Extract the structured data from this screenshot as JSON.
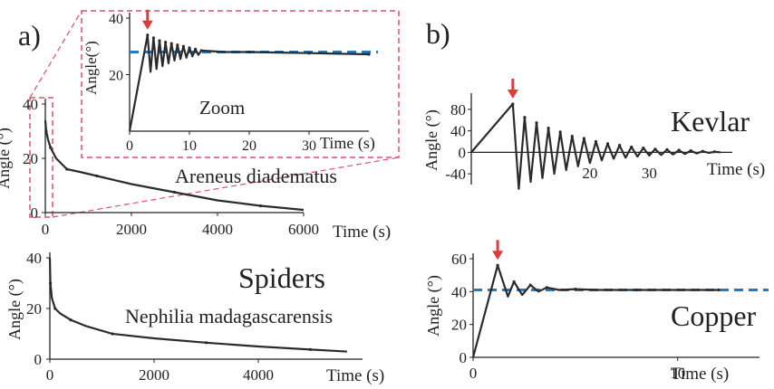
{
  "panel_labels": {
    "a": "a)",
    "b": "b)"
  },
  "colors": {
    "curve": "#2b2b2b",
    "arrow": "#e23a3a",
    "dashed": "#1f7ac8",
    "zoom_box": "#e0506a"
  },
  "chart_data": [
    {
      "id": "areneus",
      "type": "line",
      "annotation": "Areneus diadematus",
      "ylabel": "Angle (°)",
      "xlabel": "Time (s)",
      "xlim": [
        0,
        6000
      ],
      "ylim": [
        0,
        40
      ],
      "xticks": [
        0,
        2000,
        4000,
        6000
      ],
      "yticks": [
        0,
        20,
        40
      ],
      "series": [
        {
          "x": [
            0,
            20,
            60,
            120,
            250,
            500,
            800,
            1200,
            2000,
            3000,
            4000,
            5000,
            6000
          ],
          "y": [
            34,
            30,
            27,
            24,
            20,
            16,
            15,
            13.5,
            10.5,
            7.5,
            4.5,
            2.5,
            1
          ]
        }
      ]
    },
    {
      "id": "zoom",
      "type": "line",
      "annotation": "Zoom",
      "ylabel": "Angle(°)",
      "xlabel": "Time (s)",
      "xlim": [
        0,
        40
      ],
      "ylim": [
        0,
        40
      ],
      "xticks": [
        0,
        10,
        20,
        30
      ],
      "yticks": [
        20,
        40
      ],
      "reference_line": 28,
      "arrow_at_x": 3,
      "series": [
        {
          "x": [
            0,
            3,
            3.5,
            4,
            4.5,
            5,
            5.5,
            6,
            6.5,
            7,
            7.5,
            8,
            8.5,
            9,
            9.5,
            10,
            10.5,
            11,
            11.5,
            12,
            16,
            20,
            25,
            30,
            35,
            40
          ],
          "y": [
            0,
            34,
            21,
            33,
            22,
            32,
            23,
            31.5,
            24,
            31,
            25,
            30.5,
            25.5,
            30,
            26,
            29.5,
            26.5,
            29,
            27,
            28.5,
            28,
            28,
            27.8,
            27.6,
            27.4,
            27.2
          ]
        }
      ]
    },
    {
      "id": "nephilia",
      "type": "line",
      "annotation": "Nephilia madagascarensis",
      "title": "Spiders",
      "ylabel": "Angle (°)",
      "xlabel": "Time (s)",
      "xlim": [
        0,
        6000
      ],
      "ylim": [
        0,
        40
      ],
      "xticks": [
        0,
        2000,
        4000
      ],
      "yticks": [
        0,
        20,
        40
      ],
      "series": [
        {
          "x": [
            0,
            10,
            40,
            100,
            200,
            400,
            700,
            1200,
            2000,
            3000,
            4000,
            5000,
            5700
          ],
          "y": [
            40,
            30,
            24,
            20,
            18,
            15.5,
            13,
            10,
            8.2,
            6.5,
            5,
            3.8,
            3
          ]
        }
      ]
    },
    {
      "id": "kevlar",
      "type": "line",
      "title": "Kevlar",
      "ylabel": "Angle (°)",
      "xlabel": "Time (s)",
      "xlim": [
        0,
        44
      ],
      "ylim": [
        -60,
        100
      ],
      "xticks": [
        20,
        30
      ],
      "yticks": [
        -40,
        0,
        40,
        80
      ],
      "arrow_at_x": 7,
      "series": [
        {
          "x": [
            0,
            7,
            8,
            9,
            10,
            11,
            12,
            13,
            14,
            15,
            16,
            17,
            18,
            19,
            20,
            21,
            22,
            23,
            24,
            25,
            26,
            27,
            28,
            29,
            30,
            31,
            32,
            33,
            34,
            35,
            36,
            37,
            38,
            39,
            40,
            41,
            42
          ],
          "y": [
            0,
            90,
            -68,
            65,
            -55,
            55,
            -48,
            45,
            -40,
            38,
            -33,
            30,
            -26,
            26,
            -20,
            20,
            -15,
            16,
            -12,
            13,
            -10,
            10,
            -8,
            8,
            -6,
            6,
            -5,
            5,
            -4,
            4,
            -3,
            3,
            -2,
            2,
            -1,
            1,
            0
          ]
        }
      ]
    },
    {
      "id": "copper",
      "type": "line",
      "title": "Copper",
      "ylabel": "Angle (°)",
      "xlabel": "Time (s)",
      "xlim": [
        0,
        14
      ],
      "ylim": [
        0,
        60
      ],
      "xticks": [
        0,
        10
      ],
      "yticks": [
        0,
        20,
        40,
        60
      ],
      "reference_line": 41,
      "arrow_at_x": 1.2,
      "series": [
        {
          "x": [
            0,
            1.2,
            1.7,
            2.0,
            2.4,
            2.8,
            3.2,
            3.6,
            4.2,
            5,
            6,
            8,
            10,
            12
          ],
          "y": [
            0,
            56,
            37,
            46,
            38,
            44,
            40,
            42.5,
            41,
            41.5,
            41,
            41,
            41,
            41
          ]
        }
      ]
    }
  ]
}
